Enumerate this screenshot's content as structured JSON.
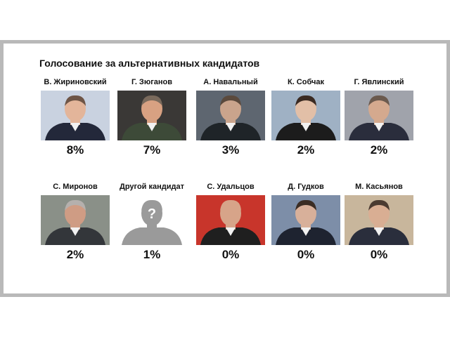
{
  "chart_data": {
    "type": "bar",
    "title": "Голосование за альтернативных кандидатов",
    "categories": [
      "В. Жириновский",
      "Г. Зюганов",
      "А. Навальный",
      "К. Собчак",
      "Г. Явлинский",
      "С. Миронов",
      "Другой кандидат",
      "С. Удальцов",
      "Д. Гудков",
      "М. Касьянов"
    ],
    "values": [
      8,
      7,
      3,
      2,
      2,
      2,
      1,
      0,
      0,
      0
    ],
    "value_labels": [
      "8%",
      "7%",
      "3%",
      "2%",
      "2%",
      "2%",
      "1%",
      "0%",
      "0%",
      "0%"
    ],
    "unit": "%"
  },
  "candidates": [
    {
      "name": "В. Жириновский",
      "pct": "8%",
      "bg": "#c9d2e0",
      "suit": "#23283a",
      "skin": "#e3b59a",
      "hair": "#6e5546"
    },
    {
      "name": "Г. Зюганов",
      "pct": "7%",
      "bg": "#3a3836",
      "suit": "#3d4a38",
      "skin": "#d8a182",
      "hair": "#7a6a5c"
    },
    {
      "name": "А. Навальный",
      "pct": "3%",
      "bg": "#5e6670",
      "suit": "#1f2428",
      "skin": "#caa48c",
      "hair": "#5b4a3d"
    },
    {
      "name": "К. Собчак",
      "pct": "2%",
      "bg": "#9fb1c4",
      "suit": "#1c1c1c",
      "skin": "#e2bfa7",
      "hair": "#3a2a22"
    },
    {
      "name": "Г. Явлинский",
      "pct": "2%",
      "bg": "#a0a3ab",
      "suit": "#2a2d3c",
      "skin": "#d4a98e",
      "hair": "#6b5a4e"
    },
    {
      "name": "С. Миронов",
      "pct": "2%",
      "bg": "#8a9088",
      "suit": "#33363a",
      "skin": "#cf9c84",
      "hair": "#b5b0ad"
    },
    {
      "name": "Другой кандидат",
      "pct": "1%",
      "bg": "#ffffff",
      "suit": "#9a9a9a",
      "skin": "#9a9a9a",
      "hair": "#9a9a9a",
      "glyph": "?"
    },
    {
      "name": "С. Удальцов",
      "pct": "0%",
      "bg": "#c8352b",
      "suit": "#1f1f1f",
      "skin": "#d7a489",
      "hair": "#d7a489"
    },
    {
      "name": "Д. Гудков",
      "pct": "0%",
      "bg": "#7d8ea8",
      "suit": "#1e2330",
      "skin": "#d8b09a",
      "hair": "#3b2d24"
    },
    {
      "name": "М. Касьянов",
      "pct": "0%",
      "bg": "#c8b69c",
      "suit": "#2a2e3c",
      "skin": "#d9ae93",
      "hair": "#4b3b31"
    }
  ]
}
